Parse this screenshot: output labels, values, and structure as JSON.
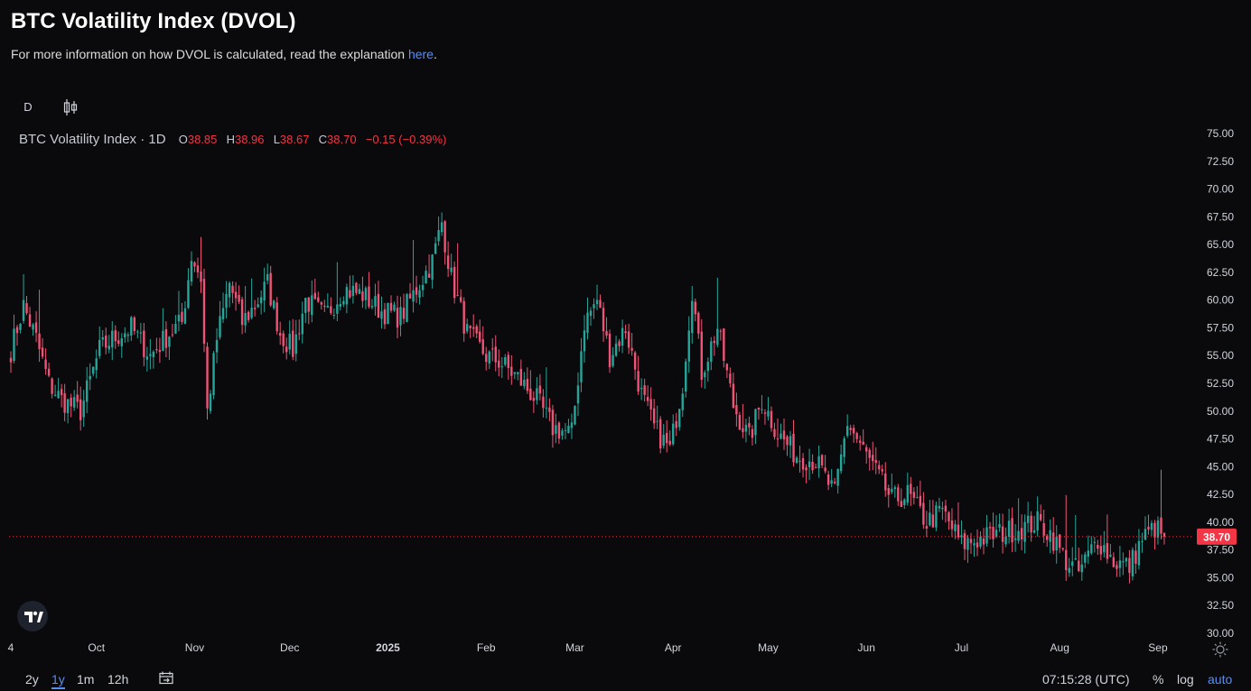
{
  "header": {
    "title": "BTC Volatility Index (DVOL)",
    "subtitle_text": "For more information on how DVOL is calculated, read the explanation ",
    "subtitle_link": "here",
    "subtitle_end": "."
  },
  "toolbar": {
    "interval": "D",
    "chart_type_icon": "candlestick-icon"
  },
  "legend": {
    "symbol": "BTC Volatility Index · 1D",
    "o_label": "O",
    "o_value": "38.85",
    "h_label": "H",
    "h_value": "38.96",
    "l_label": "L",
    "l_value": "38.67",
    "c_label": "C",
    "c_value": "38.70",
    "change": "−0.15 (−0.39%)"
  },
  "colors": {
    "up": "#26a69a",
    "down": "#ef5377",
    "bg": "#0a0a0c",
    "accent": "#5b8def",
    "last_price_bg": "#f23645"
  },
  "chart_data": {
    "type": "candlestick",
    "title": "BTC Volatility Index · 1D",
    "ylim": [
      30,
      75
    ],
    "y_ticks": [
      "75.00",
      "72.50",
      "70.00",
      "67.50",
      "65.00",
      "62.50",
      "60.00",
      "57.50",
      "55.00",
      "52.50",
      "50.00",
      "47.50",
      "45.00",
      "42.50",
      "40.00",
      "37.50",
      "35.00",
      "32.50",
      "30.00"
    ],
    "x_ticks": [
      "4",
      "Oct",
      "Nov",
      "Dec",
      "2025",
      "Feb",
      "Mar",
      "Apr",
      "May",
      "Jun",
      "Jul",
      "Aug",
      "Sep"
    ],
    "last_price": "38.70",
    "anchors": [
      [
        "2024-09-04",
        55.5
      ],
      [
        "2024-09-08",
        59.5
      ],
      [
        "2024-09-12",
        56.5
      ],
      [
        "2024-09-16",
        52.5
      ],
      [
        "2024-09-20",
        51.0
      ],
      [
        "2024-09-26",
        50.0
      ],
      [
        "2024-10-02",
        55.5
      ],
      [
        "2024-10-06",
        56.5
      ],
      [
        "2024-10-12",
        57.5
      ],
      [
        "2024-10-18",
        55.0
      ],
      [
        "2024-10-24",
        57.0
      ],
      [
        "2024-10-28",
        58.0
      ],
      [
        "2024-10-31",
        64.0
      ],
      [
        "2024-11-03",
        62.0
      ],
      [
        "2024-11-05",
        50.0
      ],
      [
        "2024-11-08",
        56.5
      ],
      [
        "2024-11-12",
        61.5
      ],
      [
        "2024-11-16",
        58.0
      ],
      [
        "2024-11-20",
        59.5
      ],
      [
        "2024-11-24",
        61.5
      ],
      [
        "2024-11-28",
        57.0
      ],
      [
        "2024-12-02",
        55.5
      ],
      [
        "2024-12-06",
        60.0
      ],
      [
        "2024-12-12",
        58.5
      ],
      [
        "2024-12-18",
        61.0
      ],
      [
        "2024-12-24",
        60.5
      ],
      [
        "2024-12-30",
        59.0
      ],
      [
        "2025-01-05",
        58.5
      ],
      [
        "2025-01-10",
        61.0
      ],
      [
        "2025-01-15",
        63.5
      ],
      [
        "2025-01-18",
        67.0
      ],
      [
        "2025-01-21",
        62.0
      ],
      [
        "2025-01-26",
        57.0
      ],
      [
        "2025-02-01",
        55.0
      ],
      [
        "2025-02-05",
        54.5
      ],
      [
        "2025-02-11",
        53.0
      ],
      [
        "2025-02-17",
        51.0
      ],
      [
        "2025-02-22",
        48.5
      ],
      [
        "2025-02-28",
        48.0
      ],
      [
        "2025-03-04",
        58.0
      ],
      [
        "2025-03-08",
        60.0
      ],
      [
        "2025-03-12",
        55.0
      ],
      [
        "2025-03-17",
        57.5
      ],
      [
        "2025-03-22",
        51.5
      ],
      [
        "2025-03-26",
        48.5
      ],
      [
        "2025-03-31",
        46.5
      ],
      [
        "2025-04-04",
        52.5
      ],
      [
        "2025-04-07",
        61.0
      ],
      [
        "2025-04-10",
        53.5
      ],
      [
        "2025-04-15",
        57.5
      ],
      [
        "2025-04-20",
        50.5
      ],
      [
        "2025-04-25",
        47.5
      ],
      [
        "2025-04-29",
        51.0
      ],
      [
        "2025-05-04",
        48.0
      ],
      [
        "2025-05-10",
        46.0
      ],
      [
        "2025-05-16",
        45.5
      ],
      [
        "2025-05-22",
        42.5
      ],
      [
        "2025-05-26",
        49.0
      ],
      [
        "2025-05-30",
        47.0
      ],
      [
        "2025-06-04",
        44.5
      ],
      [
        "2025-06-09",
        42.0
      ],
      [
        "2025-06-14",
        42.5
      ],
      [
        "2025-06-20",
        40.0
      ],
      [
        "2025-06-25",
        41.0
      ],
      [
        "2025-07-01",
        38.0
      ],
      [
        "2025-07-07",
        38.5
      ],
      [
        "2025-07-13",
        39.0
      ],
      [
        "2025-07-20",
        39.5
      ],
      [
        "2025-07-25",
        40.0
      ],
      [
        "2025-07-29",
        39.0
      ],
      [
        "2025-08-03",
        36.5
      ],
      [
        "2025-08-07",
        35.5
      ],
      [
        "2025-08-10",
        37.0
      ],
      [
        "2025-08-13",
        38.5
      ],
      [
        "2025-08-18",
        36.5
      ],
      [
        "2025-08-23",
        36.0
      ],
      [
        "2025-08-27",
        38.5
      ],
      [
        "2025-08-31",
        39.5
      ],
      [
        "2025-09-03",
        38.7
      ]
    ]
  },
  "bottom_bar": {
    "ranges": [
      "2y",
      "1y",
      "1m",
      "12h"
    ],
    "active_range": "1y",
    "time": "07:15:28 (UTC)",
    "percent": "%",
    "log": "log",
    "auto": "auto"
  }
}
